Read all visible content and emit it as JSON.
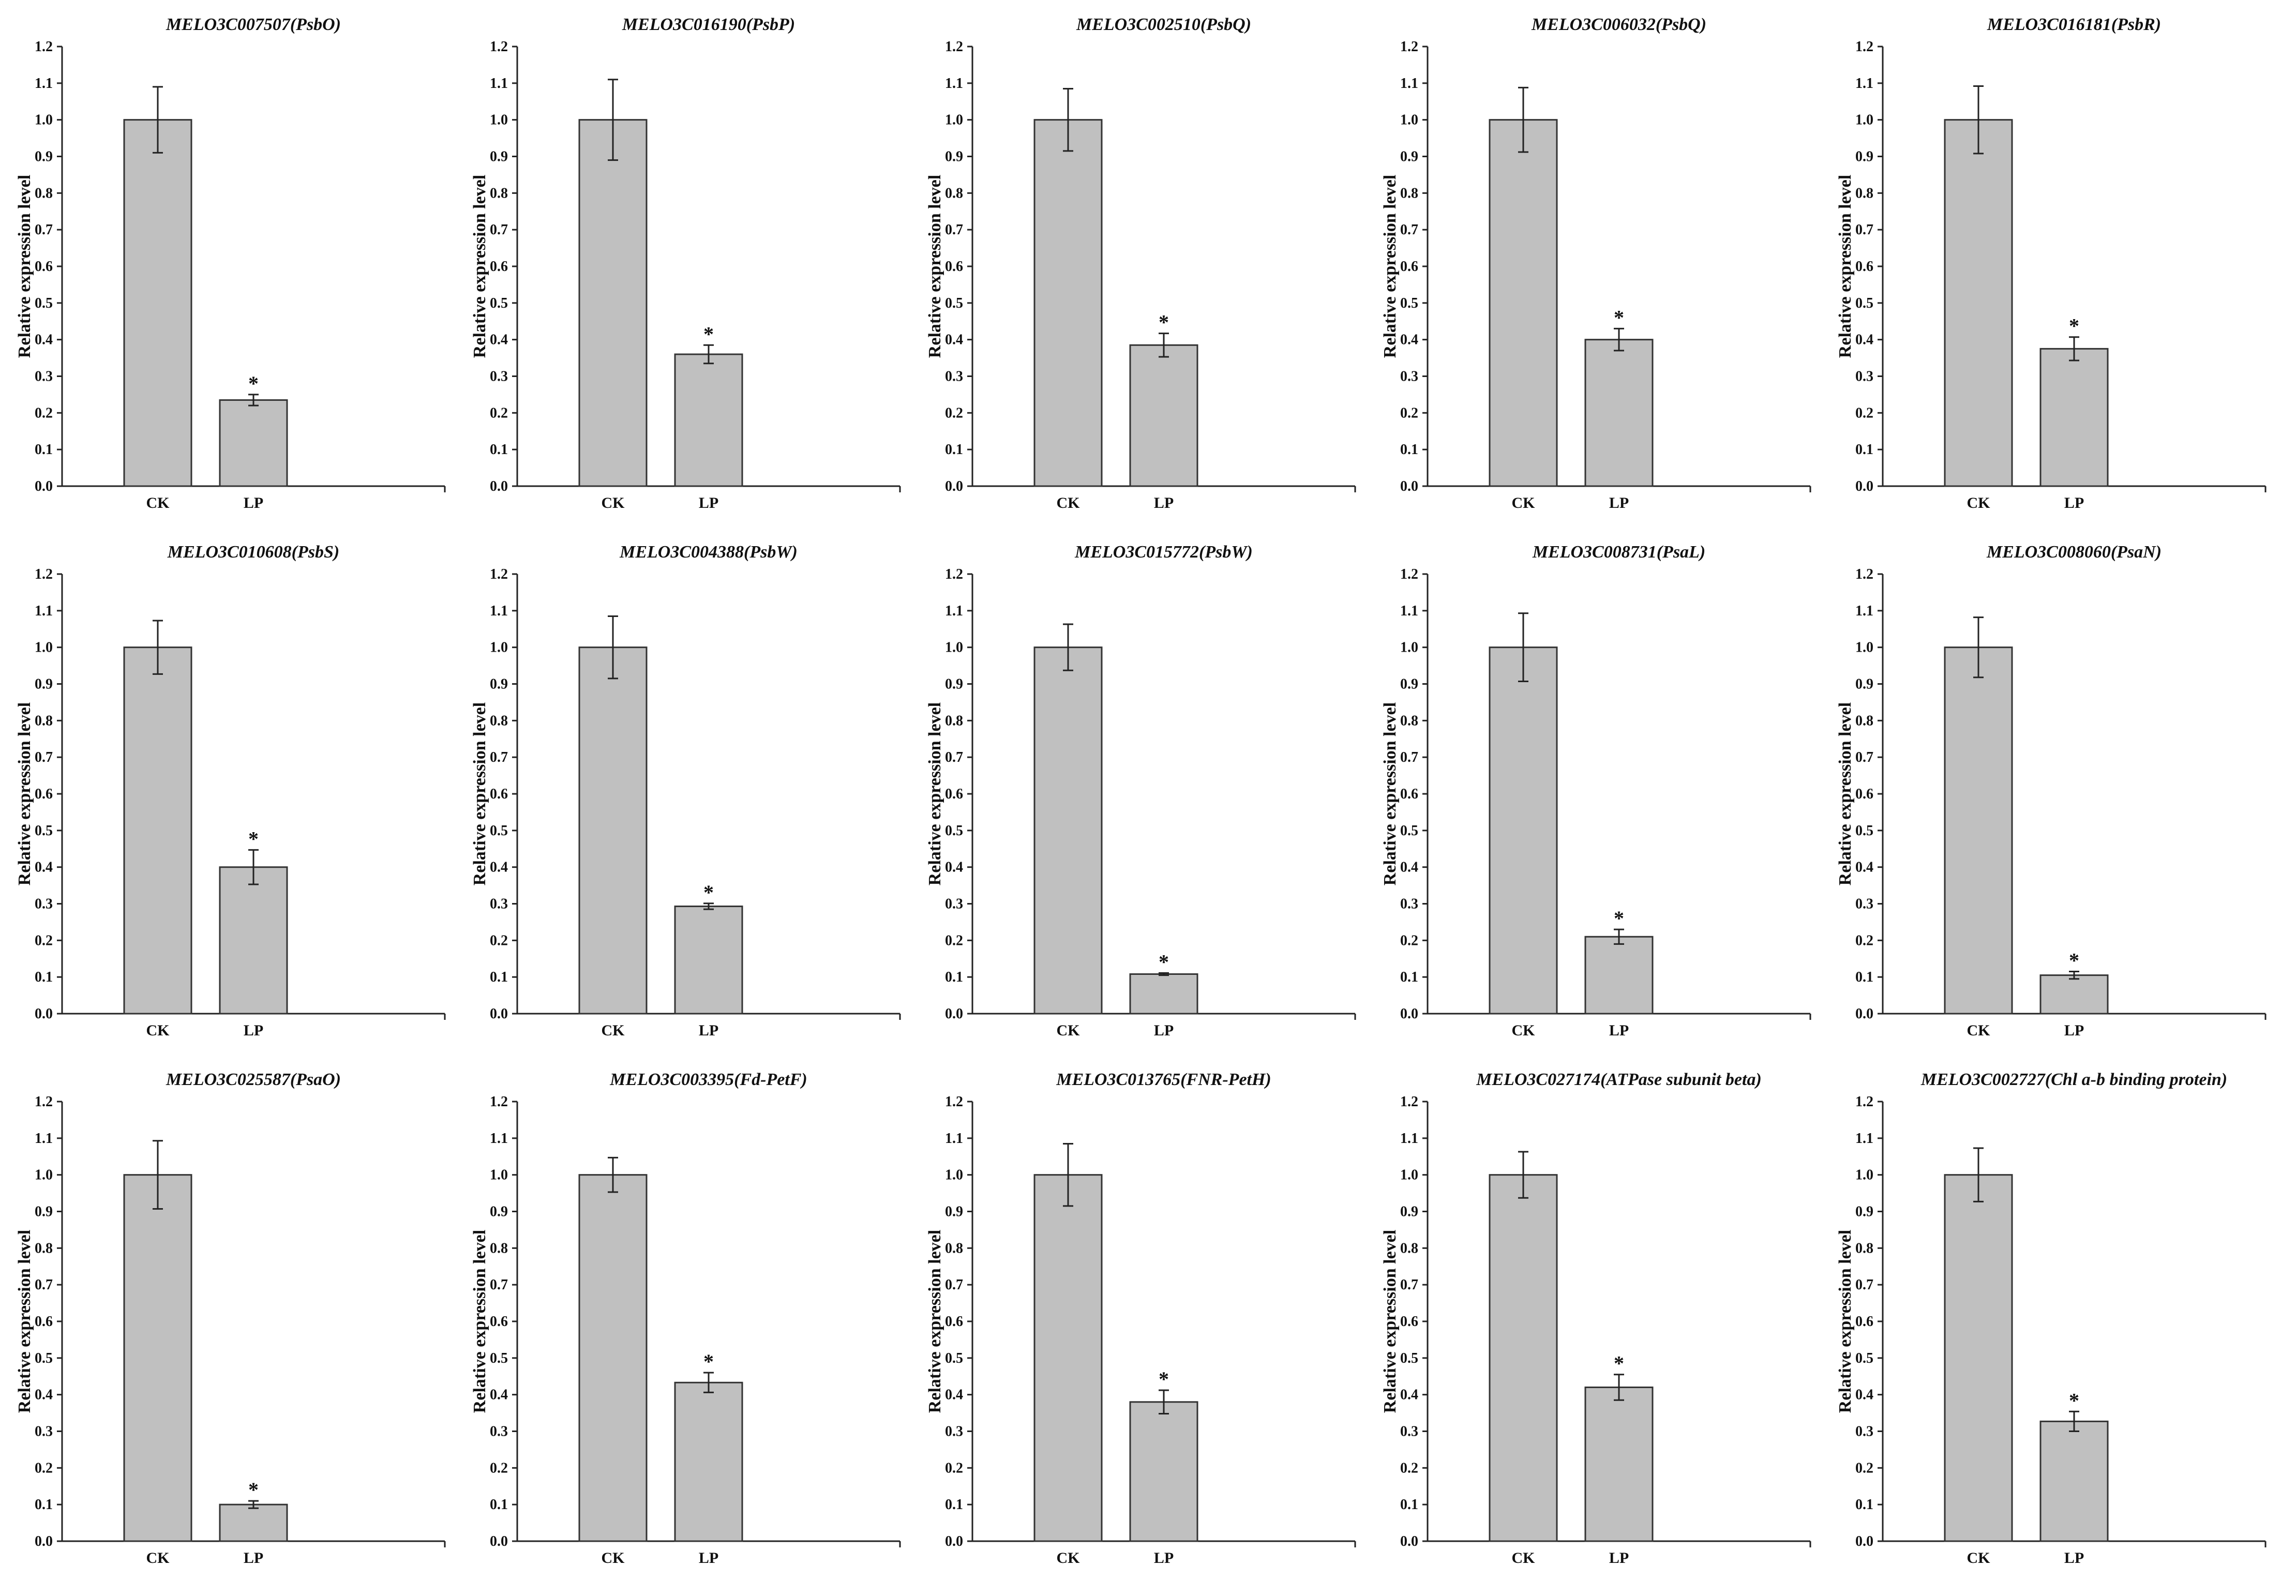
{
  "chart_data": [
    {
      "type": "bar",
      "title": "MELO3C007507(PsbO)",
      "ylabel": "Relative expression level",
      "ylim": [
        0,
        1.2
      ],
      "yticks": [
        "0.0",
        "0.1",
        "0.2",
        "0.3",
        "0.4",
        "0.5",
        "0.6",
        "0.7",
        "0.8",
        "0.9",
        "1.0",
        "1.1",
        "1.2"
      ],
      "categories": [
        "CK",
        "LP"
      ],
      "values": [
        1.0,
        0.235
      ],
      "errors": [
        0.09,
        0.015
      ],
      "significance": [
        "",
        "*"
      ]
    },
    {
      "type": "bar",
      "title": "MELO3C016190(PsbP)",
      "ylabel": "Relative expression level",
      "ylim": [
        0,
        1.2
      ],
      "yticks": [
        "0.0",
        "0.1",
        "0.2",
        "0.3",
        "0.4",
        "0.5",
        "0.6",
        "0.7",
        "0.8",
        "0.9",
        "1.0",
        "1.1",
        "1.2"
      ],
      "categories": [
        "CK",
        "LP"
      ],
      "values": [
        1.0,
        0.36
      ],
      "errors": [
        0.11,
        0.025
      ],
      "significance": [
        "",
        "*"
      ]
    },
    {
      "type": "bar",
      "title": "MELO3C002510(PsbQ)",
      "ylabel": "Relative expression level",
      "ylim": [
        0,
        1.2
      ],
      "yticks": [
        "0.0",
        "0.1",
        "0.2",
        "0.3",
        "0.4",
        "0.5",
        "0.6",
        "0.7",
        "0.8",
        "0.9",
        "1.0",
        "1.1",
        "1.2"
      ],
      "categories": [
        "CK",
        "LP"
      ],
      "values": [
        1.0,
        0.385
      ],
      "errors": [
        0.085,
        0.032
      ],
      "significance": [
        "",
        "*"
      ]
    },
    {
      "type": "bar",
      "title": "MELO3C006032(PsbQ)",
      "ylabel": "Relative expression level",
      "ylim": [
        0,
        1.2
      ],
      "yticks": [
        "0.0",
        "0.1",
        "0.2",
        "0.3",
        "0.4",
        "0.5",
        "0.6",
        "0.7",
        "0.8",
        "0.9",
        "1.0",
        "1.1",
        "1.2"
      ],
      "categories": [
        "CK",
        "LP"
      ],
      "values": [
        1.0,
        0.4
      ],
      "errors": [
        0.088,
        0.03
      ],
      "significance": [
        "",
        "*"
      ]
    },
    {
      "type": "bar",
      "title": "MELO3C016181(PsbR)",
      "ylabel": "Relative expression level",
      "ylim": [
        0,
        1.2
      ],
      "yticks": [
        "0.0",
        "0.1",
        "0.2",
        "0.3",
        "0.4",
        "0.5",
        "0.6",
        "0.7",
        "0.8",
        "0.9",
        "1.0",
        "1.1",
        "1.2"
      ],
      "categories": [
        "CK",
        "LP"
      ],
      "values": [
        1.0,
        0.375
      ],
      "errors": [
        0.092,
        0.032
      ],
      "significance": [
        "",
        "*"
      ]
    },
    {
      "type": "bar",
      "title": "MELO3C010608(PsbS)",
      "ylabel": "Relative expression level",
      "ylim": [
        0,
        1.2
      ],
      "yticks": [
        "0.0",
        "0.1",
        "0.2",
        "0.3",
        "0.4",
        "0.5",
        "0.6",
        "0.7",
        "0.8",
        "0.9",
        "1.0",
        "1.1",
        "1.2"
      ],
      "categories": [
        "CK",
        "LP"
      ],
      "values": [
        1.0,
        0.4
      ],
      "errors": [
        0.073,
        0.047
      ],
      "significance": [
        "",
        "*"
      ]
    },
    {
      "type": "bar",
      "title": "MELO3C004388(PsbW)",
      "ylabel": "Relative expression level",
      "ylim": [
        0,
        1.2
      ],
      "yticks": [
        "0.0",
        "0.1",
        "0.2",
        "0.3",
        "0.4",
        "0.5",
        "0.6",
        "0.7",
        "0.8",
        "0.9",
        "1.0",
        "1.1",
        "1.2"
      ],
      "categories": [
        "CK",
        "LP"
      ],
      "values": [
        1.0,
        0.293
      ],
      "errors": [
        0.085,
        0.008
      ],
      "significance": [
        "",
        "*"
      ]
    },
    {
      "type": "bar",
      "title": "MELO3C015772(PsbW)",
      "ylabel": "Relative expression level",
      "ylim": [
        0,
        1.2
      ],
      "yticks": [
        "0.0",
        "0.1",
        "0.2",
        "0.3",
        "0.4",
        "0.5",
        "0.6",
        "0.7",
        "0.8",
        "0.9",
        "1.0",
        "1.1",
        "1.2"
      ],
      "categories": [
        "CK",
        "LP"
      ],
      "values": [
        1.0,
        0.108
      ],
      "errors": [
        0.063,
        0.003
      ],
      "significance": [
        "",
        "*"
      ]
    },
    {
      "type": "bar",
      "title": "MELO3C008731(PsaL)",
      "ylabel": "Relative expression level",
      "ylim": [
        0,
        1.2
      ],
      "yticks": [
        "0.0",
        "0.1",
        "0.2",
        "0.3",
        "0.4",
        "0.5",
        "0.6",
        "0.7",
        "0.8",
        "0.9",
        "1.0",
        "1.1",
        "1.2"
      ],
      "categories": [
        "CK",
        "LP"
      ],
      "values": [
        1.0,
        0.21
      ],
      "errors": [
        0.093,
        0.02
      ],
      "significance": [
        "",
        "*"
      ]
    },
    {
      "type": "bar",
      "title": "MELO3C008060(PsaN)",
      "ylabel": "Relative expression level",
      "ylim": [
        0,
        1.2
      ],
      "yticks": [
        "0.0",
        "0.1",
        "0.2",
        "0.3",
        "0.4",
        "0.5",
        "0.6",
        "0.7",
        "0.8",
        "0.9",
        "1.0",
        "1.1",
        "1.2"
      ],
      "categories": [
        "CK",
        "LP"
      ],
      "values": [
        1.0,
        0.105
      ],
      "errors": [
        0.082,
        0.01
      ],
      "significance": [
        "",
        "*"
      ]
    },
    {
      "type": "bar",
      "title": "MELO3C025587(PsaO)",
      "ylabel": "Relative expression level",
      "ylim": [
        0,
        1.2
      ],
      "yticks": [
        "0.0",
        "0.1",
        "0.2",
        "0.3",
        "0.4",
        "0.5",
        "0.6",
        "0.7",
        "0.8",
        "0.9",
        "1.0",
        "1.1",
        "1.2"
      ],
      "categories": [
        "CK",
        "LP"
      ],
      "values": [
        1.0,
        0.1
      ],
      "errors": [
        0.093,
        0.01
      ],
      "significance": [
        "",
        "*"
      ]
    },
    {
      "type": "bar",
      "title": "MELO3C003395(Fd-PetF)",
      "ylabel": "Relative expression level",
      "ylim": [
        0,
        1.2
      ],
      "yticks": [
        "0.0",
        "0.1",
        "0.2",
        "0.3",
        "0.4",
        "0.5",
        "0.6",
        "0.7",
        "0.8",
        "0.9",
        "1.0",
        "1.1",
        "1.2"
      ],
      "categories": [
        "CK",
        "LP"
      ],
      "values": [
        1.0,
        0.433
      ],
      "errors": [
        0.047,
        0.027
      ],
      "significance": [
        "",
        "*"
      ]
    },
    {
      "type": "bar",
      "title": "MELO3C013765(FNR-PetH)",
      "ylabel": "Relative expression level",
      "ylim": [
        0,
        1.2
      ],
      "yticks": [
        "0.0",
        "0.1",
        "0.2",
        "0.3",
        "0.4",
        "0.5",
        "0.6",
        "0.7",
        "0.8",
        "0.9",
        "1.0",
        "1.1",
        "1.2"
      ],
      "categories": [
        "CK",
        "LP"
      ],
      "values": [
        1.0,
        0.38
      ],
      "errors": [
        0.085,
        0.032
      ],
      "significance": [
        "",
        "*"
      ]
    },
    {
      "type": "bar",
      "title": "MELO3C027174(ATPase subunit beta)",
      "ylabel": "Relative expression level",
      "ylim": [
        0,
        1.2
      ],
      "yticks": [
        "0.0",
        "0.1",
        "0.2",
        "0.3",
        "0.4",
        "0.5",
        "0.6",
        "0.7",
        "0.8",
        "0.9",
        "1.0",
        "1.1",
        "1.2"
      ],
      "categories": [
        "CK",
        "LP"
      ],
      "values": [
        1.0,
        0.42
      ],
      "errors": [
        0.063,
        0.035
      ],
      "significance": [
        "",
        "*"
      ]
    },
    {
      "type": "bar",
      "title": "MELO3C002727(Chl a-b binding protein)",
      "ylabel": "Relative expression level",
      "ylim": [
        0,
        1.2
      ],
      "yticks": [
        "0.0",
        "0.1",
        "0.2",
        "0.3",
        "0.4",
        "0.5",
        "0.6",
        "0.7",
        "0.8",
        "0.9",
        "1.0",
        "1.1",
        "1.2"
      ],
      "categories": [
        "CK",
        "LP"
      ],
      "values": [
        1.0,
        0.327
      ],
      "errors": [
        0.073,
        0.027
      ],
      "significance": [
        "",
        "*"
      ]
    }
  ]
}
